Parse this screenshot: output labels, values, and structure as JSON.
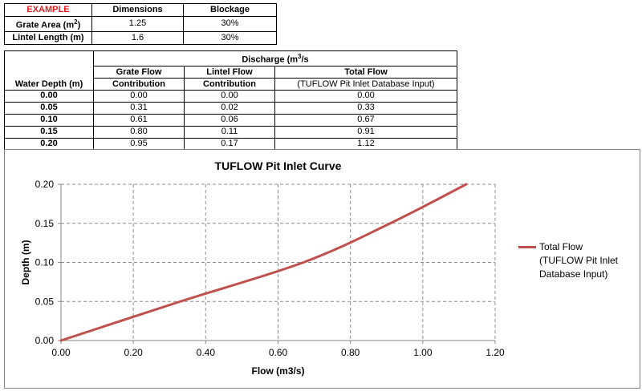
{
  "params_table": {
    "header": {
      "example": "EXAMPLE",
      "dimensions": "Dimensions",
      "blockage": "Blockage"
    },
    "rows": [
      {
        "label": "Grate Area (m",
        "label_sup": "2",
        "label_end": ")",
        "dimensions": "1.25",
        "blockage": "30%"
      },
      {
        "label": "Lintel Length (m)",
        "label_sup": "",
        "label_end": "",
        "dimensions": "1.6",
        "blockage": "30%"
      }
    ]
  },
  "discharge_table": {
    "water_depth_header": "Water Depth (m)",
    "discharge_header": "Discharge (m",
    "discharge_sup": "3",
    "discharge_end": "/s",
    "cols": {
      "grate_line1": "Grate Flow",
      "grate_line2": "Contribution",
      "lintel_line1": "Lintel Flow",
      "lintel_line2": "Contribution",
      "total_line1": "Total Flow",
      "total_line2": "(TUFLOW Pit Inlet Database Input)"
    },
    "rows": [
      {
        "depth": "0.00",
        "grate": "0.00",
        "lintel": "0.00",
        "total": "0.00"
      },
      {
        "depth": "0.05",
        "grate": "0.31",
        "lintel": "0.02",
        "total": "0.33"
      },
      {
        "depth": "0.10",
        "grate": "0.61",
        "lintel": "0.06",
        "total": "0.67"
      },
      {
        "depth": "0.15",
        "grate": "0.80",
        "lintel": "0.11",
        "total": "0.91"
      },
      {
        "depth": "0.20",
        "grate": "0.95",
        "lintel": "0.17",
        "total": "1.12"
      }
    ]
  },
  "chart_data": {
    "type": "line",
    "title": "TUFLOW Pit Inlet Curve",
    "xlabel": "Flow (m3/s)",
    "ylabel": "Depth (m)",
    "xlim": [
      0,
      1.2
    ],
    "ylim": [
      0,
      0.2
    ],
    "xticks": [
      "0.00",
      "0.20",
      "0.40",
      "0.60",
      "0.80",
      "1.00",
      "1.20"
    ],
    "yticks": [
      "0.00",
      "0.05",
      "0.10",
      "0.15",
      "0.20"
    ],
    "grid": true,
    "legend_position": "right",
    "series": [
      {
        "name": "Total Flow (TUFLOW Pit Inlet Database Input)",
        "color": "#c0504d",
        "x": [
          0.0,
          0.33,
          0.67,
          0.91,
          1.12
        ],
        "y": [
          0.0,
          0.05,
          0.1,
          0.15,
          0.2
        ]
      }
    ],
    "legend_lines": [
      "Total Flow",
      "(TUFLOW Pit Inlet",
      "Database Input)"
    ]
  }
}
